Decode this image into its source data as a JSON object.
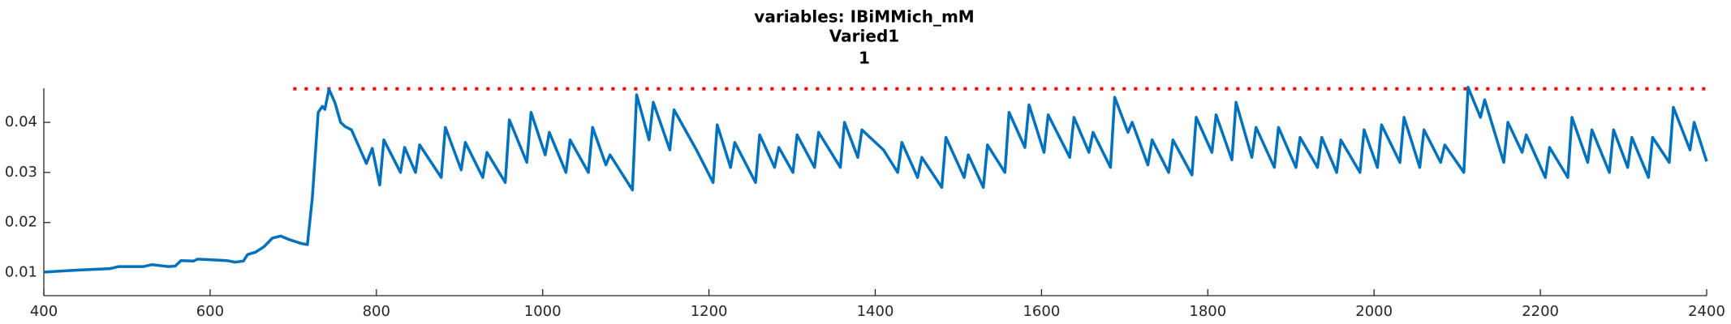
{
  "chart_data": {
    "type": "line",
    "title": "variables: IBiMMich_mM",
    "subtitle": "Varied1",
    "subtitle2": "1",
    "x": [
      400,
      440,
      480,
      490,
      520,
      530,
      550,
      558,
      565,
      580,
      585,
      620,
      630,
      640,
      645,
      655,
      665,
      675,
      685,
      695,
      710,
      717,
      723,
      730,
      735,
      738,
      743,
      750,
      757,
      762,
      770,
      788,
      795,
      804,
      809,
      829,
      834,
      847,
      852,
      878,
      883,
      902,
      907,
      928,
      933,
      955,
      960,
      981,
      986,
      1003,
      1008,
      1028,
      1033,
      1055,
      1060,
      1076,
      1081,
      1108,
      1113,
      1128,
      1133,
      1153,
      1158,
      1185,
      1205,
      1210,
      1226,
      1231,
      1256,
      1261,
      1279,
      1284,
      1301,
      1306,
      1327,
      1332,
      1358,
      1363,
      1379,
      1384,
      1410,
      1427,
      1432,
      1451,
      1456,
      1480,
      1485,
      1507,
      1512,
      1530,
      1535,
      1556,
      1561,
      1580,
      1585,
      1603,
      1608,
      1634,
      1639,
      1657,
      1662,
      1683,
      1688,
      1704,
      1709,
      1728,
      1733,
      1753,
      1758,
      1781,
      1786,
      1805,
      1810,
      1829,
      1834,
      1853,
      1858,
      1880,
      1885,
      1906,
      1911,
      1932,
      1937,
      1955,
      1960,
      1983,
      1988,
      2004,
      2009,
      2031,
      2036,
      2055,
      2060,
      2080,
      2085,
      2108,
      2113,
      2128,
      2133,
      2156,
      2161,
      2178,
      2183,
      2206,
      2211,
      2233,
      2238,
      2257,
      2262,
      2283,
      2288,
      2305,
      2310,
      2330,
      2335,
      2355,
      2360,
      2380,
      2385,
      2400
    ],
    "series": [
      {
        "name": "IBiMMich_mM",
        "color": "#0072bd",
        "values": [
          0.0101,
          0.0105,
          0.0108,
          0.0112,
          0.0112,
          0.0116,
          0.0112,
          0.0113,
          0.0124,
          0.0123,
          0.0127,
          0.0124,
          0.0121,
          0.0123,
          0.0136,
          0.0141,
          0.0152,
          0.0169,
          0.0173,
          0.0166,
          0.0158,
          0.0156,
          0.025,
          0.042,
          0.0432,
          0.0426,
          0.0466,
          0.044,
          0.04,
          0.0392,
          0.0385,
          0.0318,
          0.0348,
          0.0275,
          0.0365,
          0.03,
          0.035,
          0.03,
          0.0355,
          0.029,
          0.039,
          0.0305,
          0.036,
          0.029,
          0.034,
          0.028,
          0.0405,
          0.032,
          0.042,
          0.0335,
          0.038,
          0.03,
          0.0365,
          0.03,
          0.039,
          0.0315,
          0.0335,
          0.0265,
          0.0455,
          0.0365,
          0.044,
          0.0345,
          0.0425,
          0.0345,
          0.028,
          0.0395,
          0.031,
          0.036,
          0.028,
          0.0375,
          0.031,
          0.035,
          0.03,
          0.0375,
          0.031,
          0.038,
          0.031,
          0.04,
          0.033,
          0.0385,
          0.0345,
          0.03,
          0.036,
          0.029,
          0.033,
          0.027,
          0.037,
          0.029,
          0.0335,
          0.027,
          0.0355,
          0.03,
          0.042,
          0.035,
          0.0435,
          0.034,
          0.0415,
          0.033,
          0.041,
          0.034,
          0.038,
          0.031,
          0.045,
          0.038,
          0.04,
          0.0315,
          0.0365,
          0.03,
          0.0365,
          0.0295,
          0.041,
          0.034,
          0.0415,
          0.0325,
          0.044,
          0.033,
          0.039,
          0.031,
          0.039,
          0.031,
          0.037,
          0.031,
          0.037,
          0.03,
          0.0365,
          0.03,
          0.0385,
          0.031,
          0.0395,
          0.032,
          0.041,
          0.031,
          0.0385,
          0.032,
          0.0355,
          0.03,
          0.047,
          0.041,
          0.0445,
          0.032,
          0.04,
          0.034,
          0.0375,
          0.029,
          0.035,
          0.029,
          0.041,
          0.032,
          0.0385,
          0.03,
          0.0385,
          0.031,
          0.037,
          0.029,
          0.037,
          0.032,
          0.043,
          0.0345,
          0.04,
          0.0322
        ]
      }
    ],
    "reference_line": {
      "value": 0.0467,
      "x_range": [
        700,
        2400
      ],
      "color": "#ff0000"
    },
    "xlim": [
      400,
      2400
    ],
    "xticks": [
      400,
      600,
      800,
      1000,
      1200,
      1400,
      1600,
      1800,
      2000,
      2200,
      2400
    ],
    "ylim": [
      0.0054,
      0.0468
    ],
    "yticks": [
      0.01,
      0.02,
      0.03,
      0.04
    ]
  }
}
